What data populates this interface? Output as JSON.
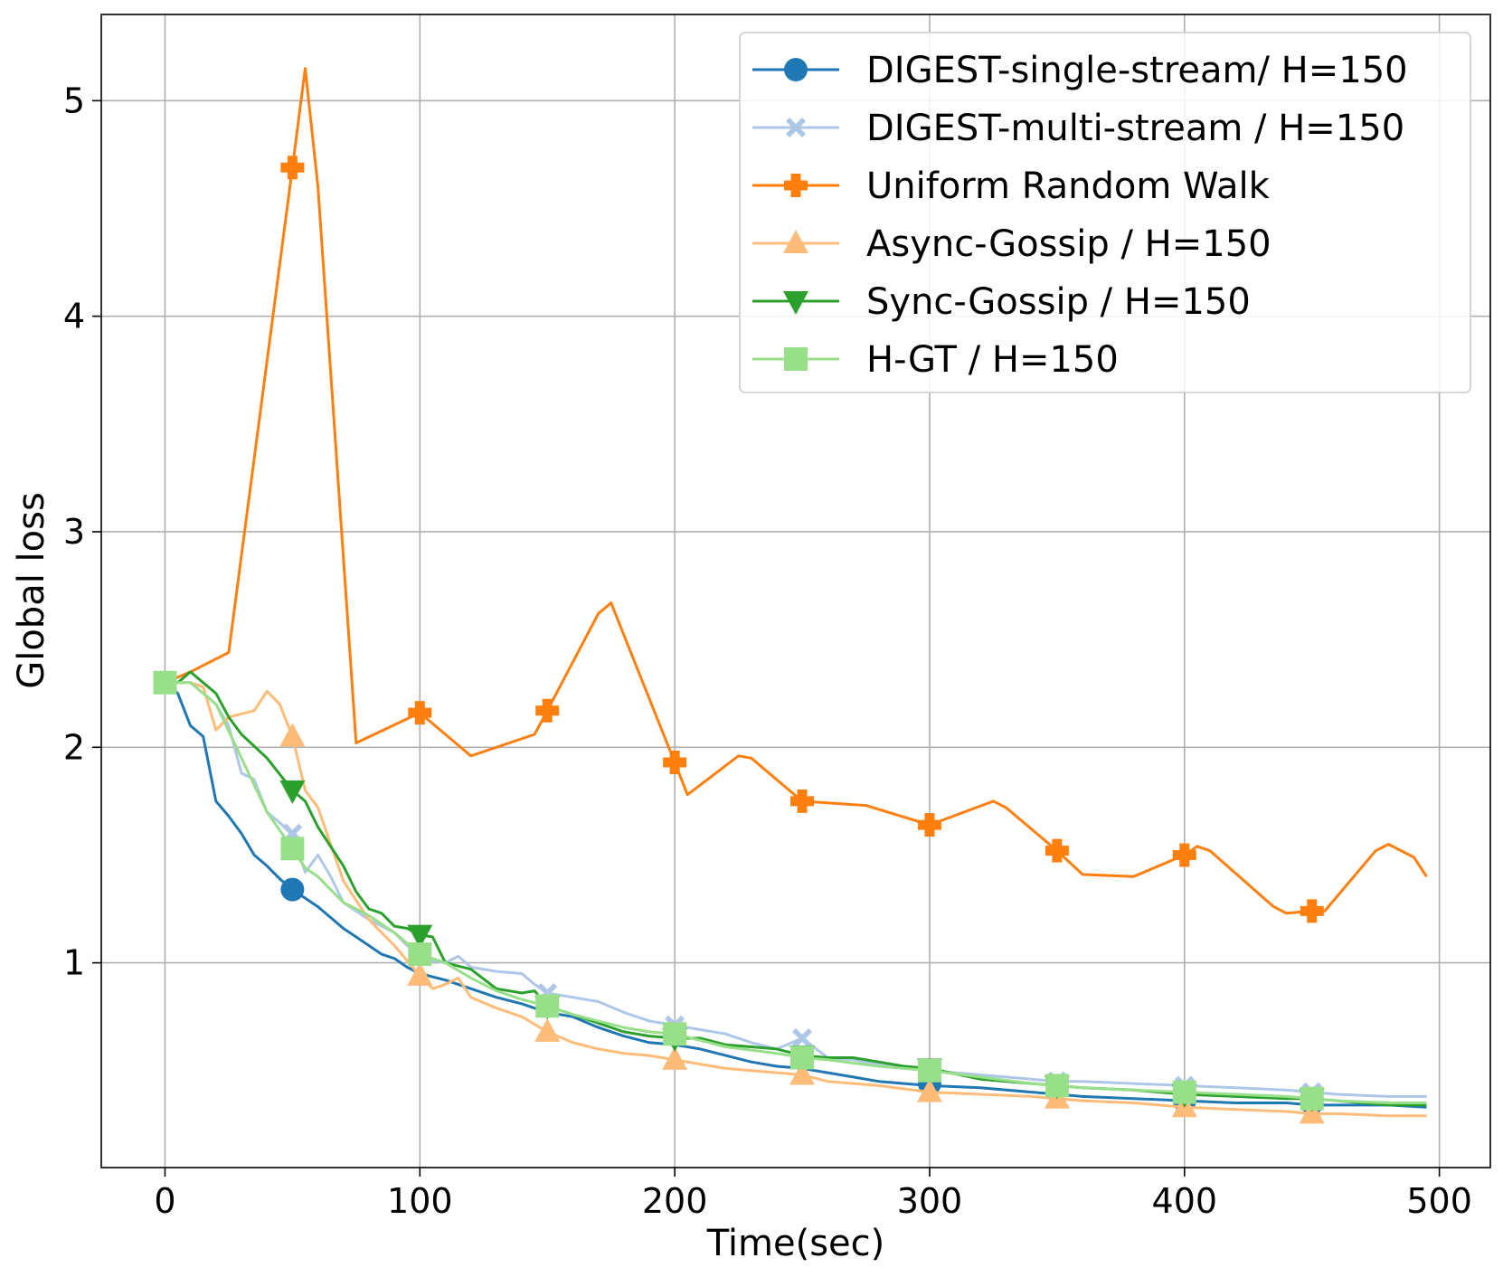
{
  "chart_data": {
    "type": "line",
    "title": "",
    "xlabel": "Time(sec)",
    "ylabel": "Global loss",
    "xlim": [
      -25,
      520
    ],
    "ylim": [
      0.05,
      5.4
    ],
    "xticks": [
      0,
      100,
      200,
      300,
      400,
      500
    ],
    "yticks": [
      1,
      2,
      3,
      4,
      5
    ],
    "grid": true,
    "legend_position": "top-right",
    "series": [
      {
        "name": "DIGEST-single-stream/ H=150",
        "color": "#1f77b4",
        "marker": "circle",
        "x": [
          0,
          5,
          10,
          15,
          20,
          25,
          30,
          35,
          40,
          45,
          50,
          55,
          60,
          65,
          70,
          75,
          80,
          85,
          90,
          95,
          100,
          110,
          120,
          130,
          140,
          150,
          160,
          170,
          180,
          190,
          200,
          210,
          220,
          230,
          240,
          250,
          260,
          270,
          280,
          290,
          300,
          320,
          340,
          350,
          360,
          380,
          400,
          420,
          440,
          450,
          460,
          480,
          495
        ],
        "y": [
          2.3,
          2.25,
          2.1,
          2.05,
          1.75,
          1.68,
          1.6,
          1.5,
          1.45,
          1.39,
          1.34,
          1.3,
          1.26,
          1.21,
          1.16,
          1.12,
          1.08,
          1.04,
          1.02,
          0.98,
          0.95,
          0.92,
          0.88,
          0.84,
          0.81,
          0.77,
          0.75,
          0.7,
          0.66,
          0.63,
          0.62,
          0.6,
          0.57,
          0.54,
          0.52,
          0.51,
          0.49,
          0.47,
          0.45,
          0.44,
          0.43,
          0.42,
          0.4,
          0.39,
          0.38,
          0.37,
          0.36,
          0.35,
          0.35,
          0.34,
          0.34,
          0.34,
          0.33
        ],
        "marker_x": [
          50,
          300,
          400,
          450
        ],
        "marker_y": [
          1.34,
          0.44,
          0.36,
          0.35
        ]
      },
      {
        "name": "DIGEST-multi-stream / H=150",
        "color": "#aec7e8",
        "marker": "x",
        "x": [
          0,
          10,
          20,
          25,
          30,
          35,
          40,
          45,
          50,
          55,
          60,
          65,
          70,
          80,
          90,
          100,
          110,
          115,
          120,
          130,
          140,
          145,
          150,
          160,
          170,
          180,
          190,
          200,
          210,
          220,
          230,
          240,
          250,
          260,
          270,
          280,
          290,
          300,
          320,
          340,
          350,
          360,
          380,
          400,
          420,
          440,
          450,
          460,
          480,
          495
        ],
        "y": [
          2.3,
          2.3,
          2.2,
          2.1,
          1.88,
          1.85,
          1.7,
          1.65,
          1.6,
          1.42,
          1.5,
          1.4,
          1.28,
          1.2,
          1.14,
          1.02,
          1.0,
          1.03,
          0.98,
          0.96,
          0.95,
          0.9,
          0.86,
          0.84,
          0.82,
          0.77,
          0.73,
          0.71,
          0.69,
          0.67,
          0.63,
          0.6,
          0.65,
          0.56,
          0.55,
          0.53,
          0.52,
          0.5,
          0.48,
          0.46,
          0.45,
          0.45,
          0.44,
          0.43,
          0.42,
          0.41,
          0.4,
          0.39,
          0.38,
          0.38
        ],
        "marker_x": [
          50,
          150,
          200,
          250,
          350,
          400,
          450
        ],
        "marker_y": [
          1.6,
          0.86,
          0.71,
          0.65,
          0.45,
          0.43,
          0.4
        ]
      },
      {
        "name": "Uniform Random Walk",
        "color": "#ff7f0e",
        "marker": "plus",
        "x": [
          0,
          10,
          25,
          50,
          55,
          60,
          75,
          100,
          120,
          145,
          150,
          170,
          175,
          200,
          205,
          225,
          230,
          250,
          275,
          300,
          325,
          330,
          350,
          360,
          380,
          400,
          405,
          410,
          435,
          440,
          450,
          455,
          475,
          480,
          490,
          495
        ],
        "y": [
          2.3,
          2.35,
          2.44,
          4.69,
          5.15,
          4.6,
          2.02,
          2.16,
          1.96,
          2.06,
          2.17,
          2.62,
          2.67,
          1.93,
          1.78,
          1.96,
          1.95,
          1.75,
          1.73,
          1.64,
          1.75,
          1.72,
          1.52,
          1.41,
          1.4,
          1.5,
          1.54,
          1.52,
          1.26,
          1.23,
          1.24,
          1.24,
          1.52,
          1.55,
          1.49,
          1.4
        ],
        "marker_x": [
          50,
          100,
          150,
          200,
          250,
          300,
          350,
          400,
          450
        ],
        "marker_y": [
          4.69,
          2.16,
          2.17,
          1.93,
          1.75,
          1.64,
          1.52,
          1.5,
          1.24
        ]
      },
      {
        "name": "Async-Gossip / H=150",
        "color": "#ffbb78",
        "marker": "triangle-up",
        "x": [
          0,
          10,
          15,
          20,
          25,
          35,
          40,
          45,
          50,
          55,
          60,
          65,
          70,
          80,
          90,
          100,
          105,
          110,
          115,
          120,
          130,
          140,
          150,
          160,
          170,
          180,
          190,
          200,
          210,
          220,
          230,
          240,
          250,
          260,
          280,
          300,
          320,
          340,
          350,
          360,
          380,
          400,
          420,
          440,
          450,
          460,
          480,
          495
        ],
        "y": [
          2.3,
          2.3,
          2.28,
          2.08,
          2.14,
          2.17,
          2.26,
          2.2,
          2.05,
          1.8,
          1.72,
          1.55,
          1.38,
          1.2,
          1.08,
          0.94,
          0.88,
          0.9,
          0.93,
          0.84,
          0.79,
          0.75,
          0.68,
          0.63,
          0.6,
          0.58,
          0.57,
          0.55,
          0.53,
          0.51,
          0.5,
          0.49,
          0.48,
          0.45,
          0.43,
          0.4,
          0.39,
          0.38,
          0.37,
          0.36,
          0.35,
          0.33,
          0.32,
          0.31,
          0.3,
          0.3,
          0.29,
          0.29
        ],
        "marker_x": [
          50,
          100,
          150,
          200,
          250,
          300,
          350,
          400,
          450
        ],
        "marker_y": [
          2.05,
          0.94,
          0.68,
          0.55,
          0.48,
          0.4,
          0.37,
          0.33,
          0.3
        ]
      },
      {
        "name": "Sync-Gossip / H=150",
        "color": "#2ca02c",
        "marker": "triangle-down",
        "x": [
          0,
          5,
          10,
          15,
          20,
          25,
          30,
          40,
          50,
          55,
          60,
          70,
          75,
          80,
          85,
          90,
          95,
          100,
          105,
          110,
          120,
          130,
          140,
          145,
          150,
          160,
          170,
          180,
          190,
          200,
          210,
          220,
          230,
          240,
          250,
          260,
          270,
          280,
          290,
          300,
          320,
          340,
          350,
          360,
          380,
          400,
          420,
          440,
          450,
          460,
          480,
          495
        ],
        "y": [
          2.3,
          2.3,
          2.35,
          2.3,
          2.25,
          2.14,
          2.06,
          1.95,
          1.8,
          1.75,
          1.63,
          1.45,
          1.33,
          1.25,
          1.23,
          1.17,
          1.16,
          1.13,
          1.12,
          1.0,
          0.97,
          0.88,
          0.86,
          0.87,
          0.8,
          0.76,
          0.72,
          0.68,
          0.66,
          0.65,
          0.65,
          0.62,
          0.61,
          0.6,
          0.57,
          0.56,
          0.56,
          0.54,
          0.52,
          0.51,
          0.46,
          0.44,
          0.43,
          0.42,
          0.41,
          0.39,
          0.38,
          0.37,
          0.37,
          0.36,
          0.34,
          0.34
        ],
        "marker_x": [
          50,
          100,
          150,
          200,
          250,
          300,
          350,
          400,
          450
        ],
        "marker_y": [
          1.8,
          1.13,
          0.8,
          0.65,
          0.57,
          0.51,
          0.43,
          0.39,
          0.37
        ]
      },
      {
        "name": "H-GT / H=150",
        "color": "#98df8a",
        "marker": "square",
        "x": [
          0,
          10,
          20,
          30,
          40,
          50,
          55,
          60,
          70,
          80,
          90,
          100,
          110,
          120,
          130,
          140,
          150,
          160,
          170,
          180,
          190,
          200,
          220,
          240,
          250,
          260,
          280,
          300,
          320,
          340,
          350,
          360,
          380,
          400,
          420,
          440,
          450,
          460,
          480,
          495
        ],
        "y": [
          2.3,
          2.3,
          2.2,
          1.95,
          1.7,
          1.53,
          1.44,
          1.4,
          1.28,
          1.22,
          1.14,
          1.04,
          1.0,
          0.93,
          0.87,
          0.83,
          0.8,
          0.76,
          0.73,
          0.7,
          0.68,
          0.67,
          0.61,
          0.58,
          0.56,
          0.55,
          0.52,
          0.5,
          0.47,
          0.44,
          0.43,
          0.42,
          0.41,
          0.4,
          0.39,
          0.38,
          0.37,
          0.36,
          0.35,
          0.35
        ],
        "marker_x": [
          0,
          50,
          100,
          150,
          200,
          250,
          300,
          350,
          400,
          450
        ],
        "marker_y": [
          2.3,
          1.53,
          1.04,
          0.8,
          0.67,
          0.56,
          0.5,
          0.43,
          0.4,
          0.37
        ]
      }
    ]
  }
}
